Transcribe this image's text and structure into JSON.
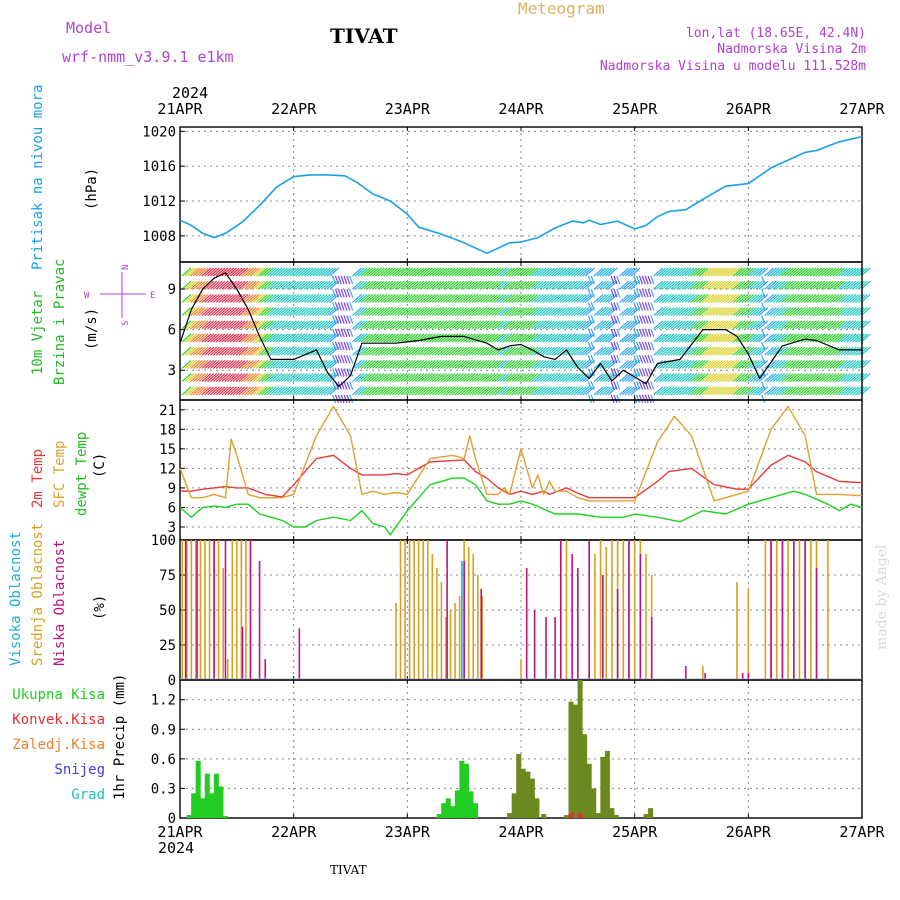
{
  "header": {
    "model_label": "Model",
    "model_name": "wrf-nmm_v3.9.1 e1km",
    "station": "TIVAT",
    "product": "Meteogram",
    "lonlat": "lon,lat (18.65E, 42.4N)",
    "elevation": "Nadmorska Visina 2m",
    "model_elevation": "Nadmorska Visina u modelu 111.528m",
    "year_top": "2024",
    "year_bottom": "2024",
    "footer_station": "TIVAT",
    "watermark": "made by Angel"
  },
  "colors": {
    "pressure": "#1aa0e8",
    "temp2m": "#e83a3a",
    "sfc_temp": "#e0a030",
    "dewpt": "#20d020",
    "high_cloud": "#18b0e0",
    "mid_cloud": "#d8a020",
    "low_cloud": "#c01080",
    "total_precip": "#22cc22",
    "conv_precip": "#e03030",
    "frozen_precip": "#f08030",
    "snow": "#4040e0",
    "graupel": "#20c0b0"
  },
  "chart_data": [
    {
      "type": "line",
      "panel": "pressure",
      "ylabel_main": "Pritisak na nivou mora",
      "ylabel_unit": "(hPa)",
      "x_labels": [
        "21APR",
        "22APR",
        "23APR",
        "24APR",
        "25APR",
        "26APR",
        "27APR"
      ],
      "y_ticks": [
        1008,
        1012,
        1016,
        1020
      ],
      "ylim": [
        1005,
        1020.5
      ],
      "series": [
        {
          "x": [
            0,
            0.1,
            0.2,
            0.3,
            0.4,
            0.55,
            0.7,
            0.85,
            1.0,
            1.15,
            1.3,
            1.45,
            1.55,
            1.7,
            1.85,
            2.0,
            2.1,
            2.3,
            2.5,
            2.7,
            2.9,
            3.0,
            3.15,
            3.3,
            3.45,
            3.55,
            3.6,
            3.7,
            3.85,
            4.0,
            4.1,
            4.2,
            4.3,
            4.45,
            4.6,
            4.8,
            5.0,
            5.2,
            5.4,
            5.5,
            5.6,
            5.8,
            6.0
          ],
          "values": [
            1009.8,
            1009.2,
            1008.3,
            1007.8,
            1008.3,
            1009.6,
            1011.5,
            1013.6,
            1014.8,
            1015.0,
            1015.0,
            1014.9,
            1014.2,
            1012.8,
            1012.0,
            1010.5,
            1009.0,
            1008.2,
            1007.2,
            1006.0,
            1007.2,
            1007.3,
            1007.8,
            1008.9,
            1009.7,
            1009.5,
            1009.8,
            1009.3,
            1009.7,
            1008.8,
            1009.2,
            1010.2,
            1010.8,
            1011.0,
            1012.2,
            1013.7,
            1014.0,
            1015.8,
            1017.0,
            1017.6,
            1017.8,
            1018.8,
            1019.4
          ]
        }
      ]
    },
    {
      "type": "line",
      "panel": "wind",
      "ylabel_main": "10m Vjetar",
      "ylabel_sub": "Brzina i Pravac",
      "ylabel_unit": "(m/s)",
      "compass": [
        "W",
        "E",
        "S",
        "N"
      ],
      "y_ticks": [
        3,
        6,
        9
      ],
      "ylim": [
        0.8,
        11
      ],
      "series": [
        {
          "name": "speed",
          "x": [
            0,
            0.1,
            0.2,
            0.3,
            0.4,
            0.5,
            0.6,
            0.7,
            0.8,
            1.0,
            1.2,
            1.3,
            1.4,
            1.5,
            1.6,
            1.7,
            1.9,
            2.1,
            2.3,
            2.5,
            2.7,
            2.8,
            2.9,
            3.0,
            3.1,
            3.2,
            3.3,
            3.4,
            3.5,
            3.6,
            3.7,
            3.8,
            3.9,
            4.0,
            4.1,
            4.2,
            4.4,
            4.6,
            4.8,
            4.9,
            5.0,
            5.1,
            5.3,
            5.5,
            5.6,
            5.8,
            6.0
          ],
          "values": [
            5.0,
            7.5,
            9.0,
            9.8,
            10.2,
            9.0,
            7.5,
            5.5,
            3.8,
            3.8,
            4.5,
            2.8,
            1.8,
            2.6,
            5.0,
            5.0,
            5.0,
            5.2,
            5.5,
            5.5,
            5.0,
            4.5,
            4.8,
            4.9,
            4.5,
            4.0,
            3.8,
            4.5,
            3.2,
            2.4,
            3.5,
            2.2,
            3.0,
            2.5,
            2.0,
            3.5,
            3.8,
            6.0,
            6.0,
            5.5,
            4.2,
            2.4,
            4.8,
            5.3,
            5.2,
            4.5,
            4.5
          ]
        }
      ]
    },
    {
      "type": "line",
      "panel": "temperature",
      "ylabel_lines": [
        "2m Temp",
        "SFC Temp",
        "dewpt Temp"
      ],
      "ylabel_unit": "(C)",
      "y_ticks": [
        3,
        6,
        9,
        12,
        15,
        18,
        21
      ],
      "ylim": [
        1,
        22.5
      ],
      "series": [
        {
          "name": "2m Temp",
          "x": [
            0,
            0.1,
            0.2,
            0.3,
            0.4,
            0.5,
            0.6,
            0.75,
            0.9,
            1.0,
            1.2,
            1.35,
            1.5,
            1.6,
            1.7,
            1.8,
            1.9,
            2.0,
            2.2,
            2.4,
            2.5,
            2.6,
            2.7,
            2.8,
            2.9,
            3.0,
            3.1,
            3.2,
            3.25,
            3.4,
            3.5,
            3.6,
            3.8,
            4.0,
            4.2,
            4.3,
            4.5,
            4.7,
            4.9,
            5.0,
            5.2,
            5.35,
            5.5,
            5.6,
            5.8,
            6.0
          ],
          "values": [
            8.5,
            8.5,
            8.8,
            9.0,
            9.2,
            9.0,
            9.0,
            8.0,
            7.6,
            9.5,
            13.5,
            14.0,
            12.0,
            11.0,
            11.0,
            11.0,
            11.2,
            11.0,
            13.0,
            13.2,
            13.3,
            11.5,
            10.5,
            9.0,
            8.0,
            8.5,
            8.0,
            8.5,
            8.0,
            9.0,
            8.2,
            7.5,
            7.5,
            7.5,
            10.0,
            11.5,
            12.0,
            9.5,
            8.8,
            8.8,
            12.5,
            14.0,
            13.0,
            11.5,
            10.0,
            9.8
          ]
        },
        {
          "name": "SFC Temp",
          "x": [
            0,
            0.1,
            0.2,
            0.3,
            0.4,
            0.45,
            0.5,
            0.6,
            0.7,
            0.8,
            0.9,
            1.0,
            1.2,
            1.35,
            1.5,
            1.6,
            1.7,
            1.8,
            1.9,
            2.0,
            2.2,
            2.4,
            2.5,
            2.55,
            2.6,
            2.7,
            2.8,
            2.85,
            2.9,
            3.0,
            3.1,
            3.15,
            3.2,
            3.25,
            3.3,
            3.4,
            3.5,
            3.6,
            3.8,
            4.0,
            4.2,
            4.35,
            4.5,
            4.7,
            4.9,
            5.0,
            5.2,
            5.35,
            5.5,
            5.6,
            5.8,
            6.0
          ],
          "values": [
            12.0,
            7.5,
            7.5,
            8.0,
            7.5,
            16.5,
            14.0,
            8.0,
            7.5,
            7.5,
            7.5,
            8.0,
            17.0,
            21.5,
            17.0,
            8.0,
            8.5,
            8.0,
            8.3,
            8.0,
            13.5,
            14.0,
            13.5,
            17.0,
            13.5,
            8.0,
            8.0,
            9.0,
            8.0,
            15.0,
            9.0,
            11.0,
            8.0,
            10.0,
            8.5,
            8.5,
            7.5,
            7.0,
            7.0,
            7.0,
            16.0,
            20.0,
            17.0,
            7.0,
            8.0,
            8.5,
            18.0,
            21.5,
            17.0,
            8.0,
            8.0,
            7.8
          ]
        },
        {
          "name": "dewpt Temp",
          "x": [
            0,
            0.1,
            0.2,
            0.3,
            0.4,
            0.5,
            0.6,
            0.7,
            0.8,
            0.9,
            1.0,
            1.1,
            1.2,
            1.35,
            1.5,
            1.6,
            1.7,
            1.8,
            1.85,
            2.0,
            2.2,
            2.4,
            2.5,
            2.6,
            2.7,
            2.8,
            2.9,
            3.0,
            3.1,
            3.3,
            3.5,
            3.7,
            3.9,
            4.0,
            4.2,
            4.4,
            4.6,
            4.8,
            5.0,
            5.2,
            5.4,
            5.5,
            5.7,
            5.8,
            5.9,
            6.0
          ],
          "values": [
            6.0,
            4.5,
            6.0,
            6.2,
            6.0,
            6.5,
            6.5,
            5.0,
            4.5,
            4.0,
            3.0,
            3.0,
            4.0,
            4.5,
            4.0,
            5.5,
            3.5,
            3.0,
            1.8,
            5.5,
            9.5,
            10.5,
            10.5,
            9.5,
            7.0,
            6.5,
            6.5,
            7.0,
            6.5,
            5.0,
            5.0,
            4.5,
            4.5,
            5.0,
            4.5,
            3.8,
            5.5,
            5.0,
            6.5,
            7.5,
            8.5,
            8.0,
            6.5,
            5.5,
            6.5,
            6.0
          ]
        }
      ]
    },
    {
      "type": "bar",
      "panel": "cloud",
      "ylabel_lines": [
        "Visoka Oblacnost",
        "Srednja Oblacnost",
        "Niska Oblacnost"
      ],
      "ylabel_unit": "(%)",
      "y_ticks": [
        0,
        25,
        50,
        75,
        100
      ],
      "ylim": [
        0,
        100
      ],
      "series": [
        {
          "name": "Srednja Oblacnost",
          "x": [
            0.02,
            0.06,
            0.1,
            0.14,
            0.18,
            0.22,
            0.26,
            0.3,
            0.34,
            0.38,
            0.42,
            0.46,
            0.5,
            0.54,
            0.58,
            0.62,
            1.9,
            1.94,
            1.98,
            2.02,
            2.06,
            2.1,
            2.14,
            2.18,
            2.22,
            2.26,
            2.3,
            2.34,
            2.38,
            2.42,
            2.46,
            2.5,
            2.54,
            2.58,
            2.62,
            2.66,
            3.0,
            3.35,
            3.4,
            3.6,
            3.65,
            3.7,
            3.75,
            3.8,
            3.85,
            3.9,
            3.95,
            4.0,
            4.05,
            4.1,
            4.15,
            4.6,
            4.9,
            5.0,
            5.15,
            5.2,
            5.25,
            5.3,
            5.35,
            5.4,
            5.45,
            5.5,
            5.55,
            5.6,
            5.7
          ],
          "values": [
            100,
            100,
            100,
            100,
            100,
            100,
            100,
            100,
            100,
            80,
            15,
            100,
            100,
            100,
            100,
            100,
            55,
            100,
            100,
            100,
            100,
            100,
            100,
            100,
            90,
            80,
            70,
            45,
            50,
            55,
            60,
            100,
            95,
            90,
            75,
            60,
            15,
            100,
            100,
            100,
            90,
            100,
            95,
            100,
            100,
            100,
            100,
            100,
            100,
            90,
            75,
            10,
            70,
            65,
            100,
            100,
            100,
            100,
            100,
            100,
            100,
            100,
            100,
            100,
            100
          ]
        },
        {
          "name": "Niska Oblacnost",
          "x": [
            0.05,
            0.15,
            0.3,
            0.4,
            0.55,
            0.62,
            0.7,
            0.75,
            1.05,
            2.35,
            2.5,
            2.65,
            3.05,
            3.12,
            3.22,
            3.3,
            3.35,
            3.45,
            3.5,
            3.6,
            3.72,
            3.85,
            3.95,
            4.05,
            4.15,
            4.45,
            4.62,
            4.95,
            5.0,
            5.2,
            5.3,
            5.4,
            5.5,
            5.6
          ],
          "values": [
            100,
            100,
            100,
            100,
            38,
            100,
            85,
            15,
            37,
            100,
            85,
            65,
            80,
            50,
            45,
            45,
            100,
            90,
            80,
            100,
            75,
            65,
            100,
            90,
            45,
            10,
            5,
            5,
            5,
            100,
            100,
            100,
            100,
            80
          ]
        },
        {
          "name": "Visoka Oblacnost",
          "x": [
            2.48
          ],
          "values": [
            85
          ]
        }
      ]
    },
    {
      "type": "bar",
      "panel": "precip",
      "ylabel_lines": [
        "Ukupna Kisa",
        "Konvek.Kisa",
        "Zaledj.Kisa",
        "Snijeg",
        "Grad"
      ],
      "ylabel_unit": "1hr Precip (mm)",
      "x_labels": [
        "21APR",
        "22APR",
        "23APR",
        "24APR",
        "25APR",
        "26APR",
        "27APR"
      ],
      "y_ticks": [
        0,
        0.3,
        0.6,
        0.9,
        1.2
      ],
      "ylim": [
        0,
        1.4
      ],
      "series": [
        {
          "name": "Ukupna Kisa",
          "x": [
            0.08,
            0.12,
            0.16,
            0.2,
            0.24,
            0.28,
            0.32,
            0.36,
            0.4,
            2.28,
            2.32,
            2.36,
            2.4,
            2.44,
            2.48,
            2.52,
            2.56,
            2.6,
            2.9,
            2.94,
            2.98,
            3.02,
            3.06,
            3.1,
            3.14,
            3.2,
            3.4,
            3.44,
            3.48,
            3.52,
            3.56,
            3.6,
            3.64,
            3.68,
            3.72,
            3.76,
            3.8,
            3.84,
            4.1,
            4.14
          ],
          "values": [
            0.03,
            0.25,
            0.58,
            0.2,
            0.45,
            0.25,
            0.45,
            0.32,
            0.02,
            0.04,
            0.15,
            0.2,
            0.12,
            0.28,
            0.58,
            0.55,
            0.27,
            0.15,
            0.05,
            0.25,
            0.65,
            0.5,
            0.47,
            0.4,
            0.2,
            0.04,
            0.03,
            1.18,
            1.15,
            1.4,
            0.85,
            0.55,
            0.3,
            0.05,
            0.62,
            0.68,
            0.1,
            0.03,
            0.04,
            0.1
          ]
        },
        {
          "name": "Konvek.Kisa",
          "x": [
            3.44,
            3.52
          ],
          "values": [
            0.05,
            0.05
          ]
        }
      ]
    }
  ]
}
